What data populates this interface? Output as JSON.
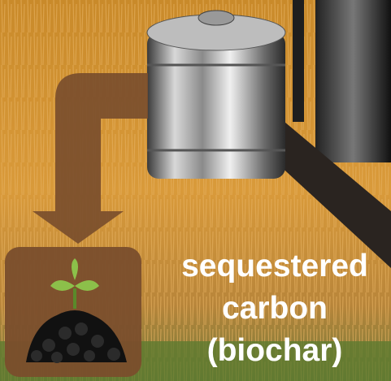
{
  "caption": {
    "lines": [
      "sequestered",
      "carbon",
      "(biochar)"
    ]
  }
}
